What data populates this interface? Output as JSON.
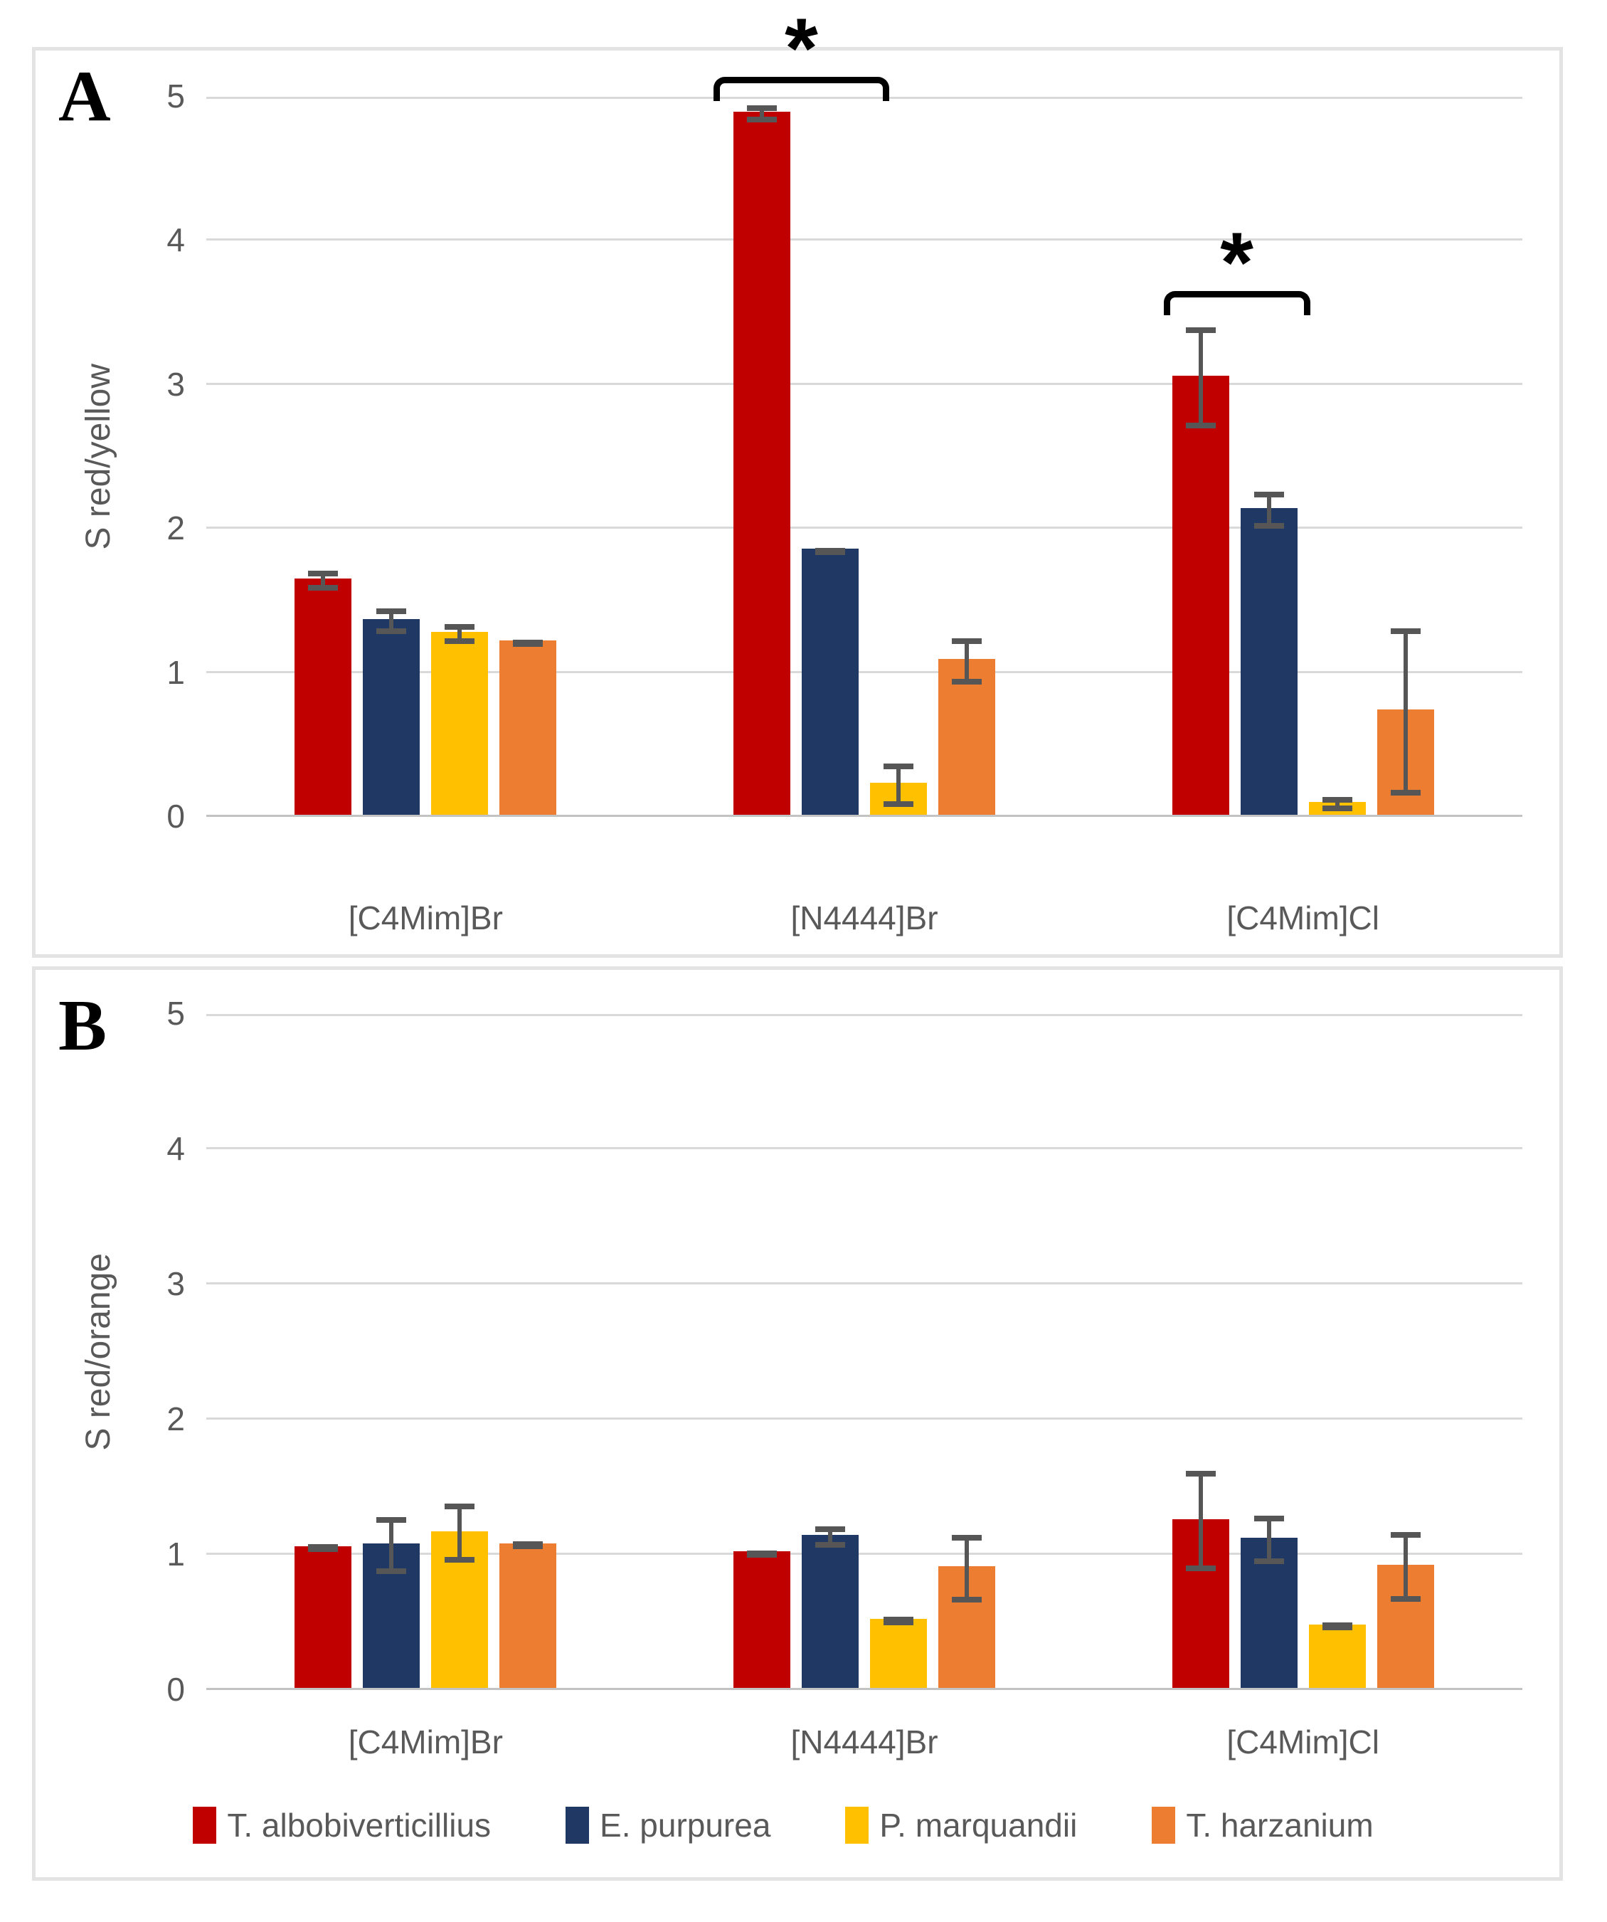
{
  "chart_data": [
    {
      "type": "bar",
      "panel_letter": "A",
      "ylabel": "S red/yellow",
      "xlabel": "",
      "ylim": [
        0,
        5
      ],
      "yticks": [
        0,
        1,
        2,
        3,
        4,
        5
      ],
      "grid": "horizontal",
      "legend_position": "none",
      "categories": [
        "[C4Mim]Br",
        "[N4444]Br",
        "[C4Mim]Cl"
      ],
      "series": [
        {
          "name": "T. albobiverticillius",
          "color": "#c00000",
          "values": [
            1.64,
            4.88,
            3.05
          ],
          "errors": [
            0.07,
            0.06,
            0.35
          ]
        },
        {
          "name": "E. purpurea",
          "color": "#1f3864",
          "values": [
            1.36,
            1.85,
            2.13
          ],
          "errors": [
            0.09,
            0.02,
            0.13
          ]
        },
        {
          "name": "P. marquandii",
          "color": "#ffc000",
          "values": [
            1.27,
            0.22,
            0.09
          ],
          "errors": [
            0.07,
            0.15,
            0.05
          ]
        },
        {
          "name": "T. harzanium",
          "color": "#ed7d31",
          "values": [
            1.21,
            1.08,
            0.73
          ],
          "errors": [
            0.02,
            0.16,
            0.58
          ]
        }
      ],
      "significance_brackets": [
        {
          "category_index": 1,
          "label": "*",
          "y_value": 5.14,
          "x_start_offset": -212,
          "x_end_offset": 35
        },
        {
          "category_index": 2,
          "label": "*",
          "y_value": 3.65,
          "x_start_offset": -196,
          "x_end_offset": 10
        }
      ]
    },
    {
      "type": "bar",
      "panel_letter": "B",
      "ylabel": "S red/orange",
      "xlabel": "",
      "ylim": [
        0,
        5
      ],
      "yticks": [
        0,
        1,
        2,
        3,
        4,
        5
      ],
      "grid": "horizontal",
      "legend_position": "bottom",
      "categories": [
        "[C4Mim]Br",
        "[N4444]Br",
        "[C4Mim]Cl"
      ],
      "series": [
        {
          "name": "T. albobiverticillius",
          "color": "#c00000",
          "values": [
            1.05,
            1.01,
            1.25
          ],
          "errors": [
            0.03,
            0.02,
            0.37
          ]
        },
        {
          "name": "E. purpurea",
          "color": "#1f3864",
          "values": [
            1.07,
            1.13,
            1.11
          ],
          "errors": [
            0.21,
            0.08,
            0.18
          ]
        },
        {
          "name": "P. marquandii",
          "color": "#ffc000",
          "values": [
            1.16,
            0.51,
            0.47
          ],
          "errors": [
            0.22,
            0.03,
            0.03
          ]
        },
        {
          "name": "T. harzanium",
          "color": "#ed7d31",
          "values": [
            1.07,
            0.9,
            0.91
          ],
          "errors": [
            0.03,
            0.25,
            0.26
          ]
        }
      ],
      "significance_brackets": []
    }
  ],
  "legend": {
    "items": [
      {
        "label": "T. albobiverticillius",
        "color": "#c00000"
      },
      {
        "label": "E. purpurea",
        "color": "#1f3864"
      },
      {
        "label": "P. marquandii",
        "color": "#ffc000"
      },
      {
        "label": "T. harzanium",
        "color": "#ed7d31"
      }
    ]
  }
}
